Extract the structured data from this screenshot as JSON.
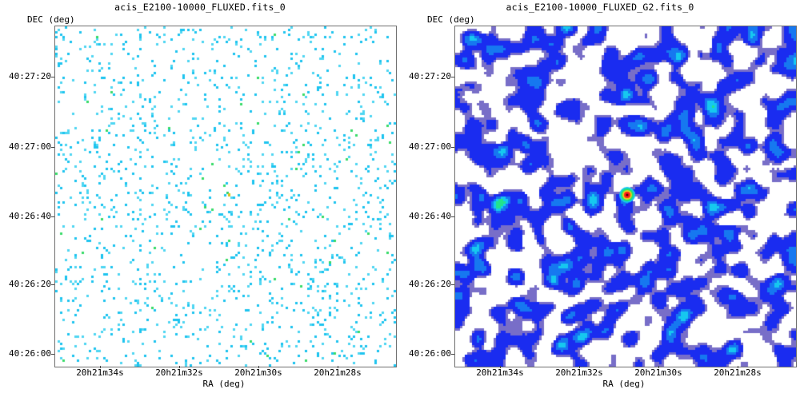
{
  "panels": [
    {
      "title": "acis_E2100-10000_FLUXED.fits_0",
      "ylabel": "DEC (deg)",
      "xlabel": "RA (deg)",
      "yticks": [
        "40:27:20",
        "40:27:00",
        "40:26:40",
        "40:26:20",
        "40:26:00"
      ],
      "xticks": [
        "20h21m34s",
        "20h21m32s",
        "20h21m30s",
        "20h21m28s"
      ],
      "render": "sparse-counts"
    },
    {
      "title": "acis_E2100-10000_FLUXED_G2.fits_0",
      "ylabel": "DEC (deg)",
      "xlabel": "RA (deg)",
      "yticks": [
        "40:27:20",
        "40:27:00",
        "40:26:40",
        "40:26:20",
        "40:26:00"
      ],
      "xticks": [
        "20h21m34s",
        "20h21m32s",
        "20h21m30s",
        "20h21m28s"
      ],
      "render": "smoothed"
    }
  ],
  "colors": {
    "background": "#ffffff",
    "low": "#1a2cf0",
    "mid": "#16c8ef",
    "high": "#22e36e",
    "peak": "#ff1d1d"
  }
}
